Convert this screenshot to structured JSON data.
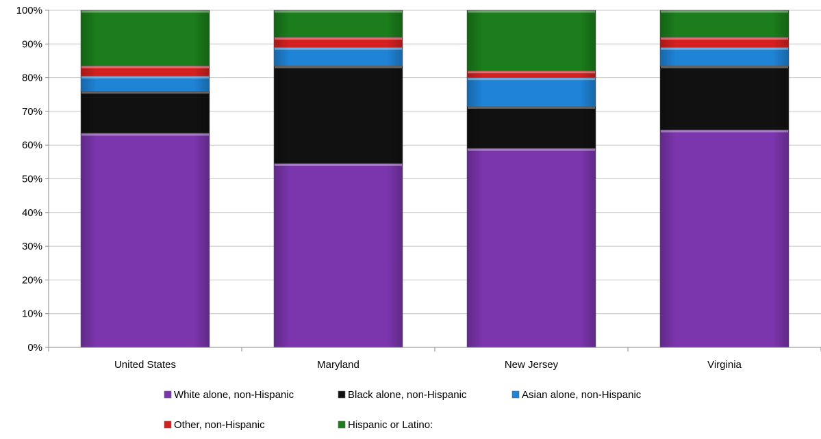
{
  "chart_data": {
    "type": "bar",
    "stacked": true,
    "percent": true,
    "categories": [
      "United States",
      "Maryland",
      "New Jersey",
      "Virginia"
    ],
    "series": [
      {
        "name": "White alone, non-Hispanic",
        "color": "#7b35ad",
        "values": [
          63.5,
          54.5,
          59,
          64.5
        ]
      },
      {
        "name": "Black alone, non-Hispanic",
        "color": "#111111",
        "values": [
          12.5,
          29,
          12.5,
          19
        ]
      },
      {
        "name": "Asian alone, non-Hispanic",
        "color": "#1f83d6",
        "values": [
          4.5,
          5.5,
          8.5,
          5.5
        ]
      },
      {
        "name": "Other, non-Hispanic",
        "color": "#d42020",
        "values": [
          3,
          3,
          2,
          3
        ]
      },
      {
        "name": "Hispanic or Latino:",
        "color": "#1b7d1b",
        "values": [
          16.5,
          8,
          18,
          8
        ]
      }
    ],
    "ylim": [
      0,
      100
    ],
    "yticks": [
      "0%",
      "10%",
      "20%",
      "30%",
      "40%",
      "50%",
      "60%",
      "70%",
      "80%",
      "90%",
      "100%"
    ],
    "grid": true,
    "legend": "bottom"
  }
}
